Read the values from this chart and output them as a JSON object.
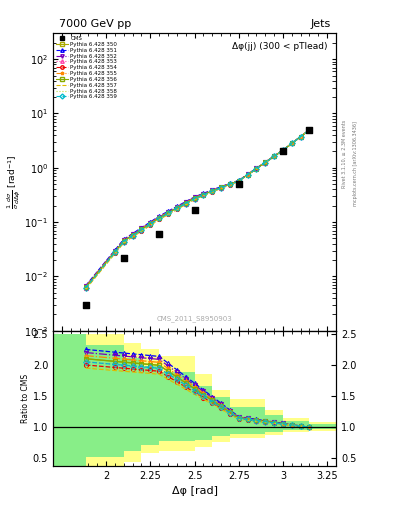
{
  "title_top": "7000 GeV pp",
  "title_right": "Jets",
  "annotation": "Δφ(jj) (300 < pTlead)",
  "watermark": "CMS_2011_S8950903",
  "xlabel": "Δφ [rad]",
  "ylabel_ratio": "Ratio to CMS",
  "right_label1": "Rivet 3.1.10, ≥ 2.3M events",
  "right_label2": "mcplots.cern.ch [arXiv:1306.3436]",
  "cms_x": [
    1.885,
    2.1,
    2.3,
    2.5,
    2.75,
    3.0,
    3.15
  ],
  "cms_y": [
    0.003,
    0.022,
    0.06,
    0.17,
    0.5,
    2.0,
    5.0
  ],
  "x_line": [
    1.885,
    2.05,
    2.1,
    2.15,
    2.2,
    2.25,
    2.3,
    2.35,
    2.4,
    2.45,
    2.5,
    2.55,
    2.6,
    2.65,
    2.7,
    2.75,
    2.8,
    2.85,
    2.9,
    2.95,
    3.0,
    3.05,
    3.1,
    3.15
  ],
  "pythia_colors": [
    "#aaaa00",
    "#0000ff",
    "#7700bb",
    "#ff44aa",
    "#ee0000",
    "#ff8800",
    "#88aa00",
    "#ddbb00",
    "#bbdd44",
    "#00bbcc"
  ],
  "pythia_labels": [
    "Pythia 6.428 350",
    "Pythia 6.428 351",
    "Pythia 6.428 352",
    "Pythia 6.428 353",
    "Pythia 6.428 354",
    "Pythia 6.428 355",
    "Pythia 6.428 356",
    "Pythia 6.428 357",
    "Pythia 6.428 358",
    "Pythia 6.428 359"
  ],
  "pythia_linestyles": [
    "-",
    "--",
    "-.",
    ":",
    "--",
    "-.",
    "-",
    "--",
    ":",
    "--"
  ],
  "pythia_markers": [
    "s",
    "^",
    "v",
    "^",
    "o",
    "*",
    "s",
    null,
    null,
    "D"
  ],
  "pythia_msize": [
    3,
    3,
    3,
    3,
    3,
    3,
    3,
    0,
    0,
    3
  ],
  "pythia_scales": [
    2.1,
    2.25,
    2.2,
    2.05,
    2.0,
    2.15,
    2.1,
    1.95,
    1.97,
    2.05
  ],
  "yellow_x": [
    1.7,
    1.885,
    2.1,
    2.2,
    2.3,
    2.5,
    2.6,
    2.7,
    2.9,
    3.0,
    3.15,
    3.3
  ],
  "yellow_lo": [
    0.38,
    0.38,
    0.45,
    0.58,
    0.62,
    0.68,
    0.77,
    0.83,
    0.88,
    0.92,
    0.94,
    0.94
  ],
  "yellow_hi": [
    2.5,
    2.5,
    2.35,
    2.25,
    2.15,
    1.85,
    1.6,
    1.45,
    1.28,
    1.15,
    1.08,
    1.08
  ],
  "green_x": [
    1.7,
    1.885,
    2.1,
    2.2,
    2.3,
    2.5,
    2.6,
    2.7,
    2.9,
    3.0,
    3.15,
    3.3
  ],
  "green_lo": [
    0.38,
    0.52,
    0.62,
    0.72,
    0.78,
    0.8,
    0.86,
    0.89,
    0.92,
    0.95,
    0.97,
    0.97
  ],
  "green_hi": [
    2.5,
    2.32,
    2.12,
    1.98,
    1.88,
    1.67,
    1.48,
    1.33,
    1.2,
    1.1,
    1.05,
    1.05
  ],
  "xlim": [
    1.7,
    3.3
  ],
  "ylim_main": [
    0.001,
    300.0
  ],
  "ylim_ratio": [
    0.38,
    2.55
  ],
  "yticks_ratio": [
    0.5,
    1.0,
    1.5,
    2.0,
    2.5
  ],
  "xticks": [
    1.75,
    2.0,
    2.25,
    2.5,
    2.75,
    3.0,
    3.25
  ],
  "xticklabels": [
    "",
    "2",
    "2.25",
    "2.5",
    "2.75",
    "3",
    "3.25"
  ]
}
